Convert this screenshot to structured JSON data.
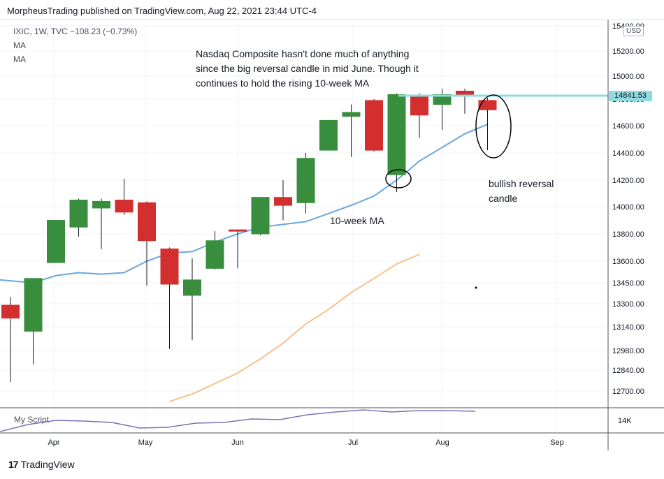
{
  "header": {
    "published": "MorpheusTrading published on TradingView.com, Aug 22, 2021 23:44 UTC-4"
  },
  "legend": {
    "symbol_line": "IXIC, 1W, TVC  −108.23 (−0.73%)",
    "ma1": "MA",
    "ma2": "MA"
  },
  "currency": "USD",
  "last_price_tag": "14841.53",
  "annotations": {
    "main_text": [
      "Nasdaq Composite hasn't done much of anything",
      "since the big reversal candle in mid June.  Though it",
      "continues to hold  the rising 10-week MA"
    ],
    "ma_label": "10-week MA",
    "reversal_label": [
      "bullish reversal",
      "candle"
    ]
  },
  "sub_pane": {
    "label": "My Script",
    "tick": "14K"
  },
  "footer": {
    "brand": "TradingView",
    "logo": "17"
  },
  "colors": {
    "up": "#388e3c",
    "down": "#d32f2f",
    "ma10": "#6aa6dc",
    "ma_long": "#f7c18b",
    "hline": "#8fdbe0",
    "script": "#7e6fb8"
  },
  "chart_data": {
    "type": "candlestick",
    "symbol": "IXIC",
    "interval": "1W",
    "y_ticks": [
      12700,
      12840,
      12980,
      13140,
      13300,
      13450,
      13600,
      13800,
      14000,
      14200,
      14400,
      14600,
      14800,
      15000,
      15200,
      15400
    ],
    "y_tick_labels": [
      "12700.00",
      "12840.00",
      "12980.00",
      "13140.00",
      "13300.00",
      "13450.00",
      "13600.00",
      "13800.00",
      "14000.00",
      "14200.00",
      "14400.00",
      "14600.00",
      "14800.00",
      "15000.00",
      "15200.00",
      "15400.00"
    ],
    "x_tick_labels": [
      "Apr",
      "May",
      "Jun",
      "Jul",
      "Aug",
      "Sep"
    ],
    "candles": [
      {
        "week": "2021-03-15",
        "open": 13290,
        "high": 13350,
        "low": 12760,
        "close": 13200
      },
      {
        "week": "2021-03-22",
        "open": 13110,
        "high": 13480,
        "low": 12880,
        "close": 13480
      },
      {
        "week": "2021-03-29",
        "open": 13590,
        "high": 13900,
        "low": 13590,
        "close": 13900
      },
      {
        "week": "2021-04-05",
        "open": 13850,
        "high": 14060,
        "low": 13780,
        "close": 14050
      },
      {
        "week": "2021-04-12",
        "open": 13990,
        "high": 14060,
        "low": 13690,
        "close": 14040
      },
      {
        "week": "2021-04-19",
        "open": 14050,
        "high": 14210,
        "low": 13940,
        "close": 13960
      },
      {
        "week": "2021-04-26",
        "open": 14030,
        "high": 14040,
        "low": 13430,
        "close": 13750
      },
      {
        "week": "2021-05-03",
        "open": 13690,
        "high": 13700,
        "low": 12990,
        "close": 13440
      },
      {
        "week": "2021-05-10",
        "open": 13360,
        "high": 13620,
        "low": 13050,
        "close": 13470
      },
      {
        "week": "2021-05-17",
        "open": 13550,
        "high": 13820,
        "low": 13540,
        "close": 13750
      },
      {
        "week": "2021-05-24",
        "open": 13830,
        "high": 13830,
        "low": 13550,
        "close": 13820
      },
      {
        "week": "2021-05-31",
        "open": 13800,
        "high": 14070,
        "low": 13790,
        "close": 14070
      },
      {
        "week": "2021-06-07",
        "open": 14070,
        "high": 14200,
        "low": 13900,
        "close": 14010
      },
      {
        "week": "2021-06-14",
        "open": 14030,
        "high": 14400,
        "low": 13950,
        "close": 14360
      },
      {
        "week": "2021-06-21",
        "open": 14420,
        "high": 14640,
        "low": 14420,
        "close": 14640
      },
      {
        "week": "2021-06-28",
        "open": 14670,
        "high": 14760,
        "low": 14370,
        "close": 14700
      },
      {
        "week": "2021-07-05",
        "open": 14790,
        "high": 14800,
        "low": 14410,
        "close": 14420
      },
      {
        "week": "2021-07-12",
        "open": 14240,
        "high": 14850,
        "low": 14110,
        "close": 14840
      },
      {
        "week": "2021-07-19",
        "open": 14820,
        "high": 14850,
        "low": 14510,
        "close": 14680
      },
      {
        "week": "2021-07-26",
        "open": 14760,
        "high": 14890,
        "low": 14570,
        "close": 14840
      },
      {
        "week": "2021-08-02",
        "open": 14870,
        "high": 14890,
        "low": 14690,
        "close": 14840
      },
      {
        "week": "2021-08-09",
        "open": 14790,
        "high": 14810,
        "low": 14420,
        "close": 14720
      }
    ],
    "ma10": [
      13470,
      13450,
      13500,
      13520,
      13510,
      13520,
      13600,
      13660,
      13670,
      13740,
      13800,
      13850,
      13870,
      13890,
      13950,
      14010,
      14080,
      14200,
      14340,
      14440,
      14540,
      14610
    ],
    "ma_long": [
      12630,
      12680,
      12750,
      12820,
      12920,
      13030,
      13160,
      13260,
      13380,
      13480,
      13580,
      13650
    ]
  }
}
